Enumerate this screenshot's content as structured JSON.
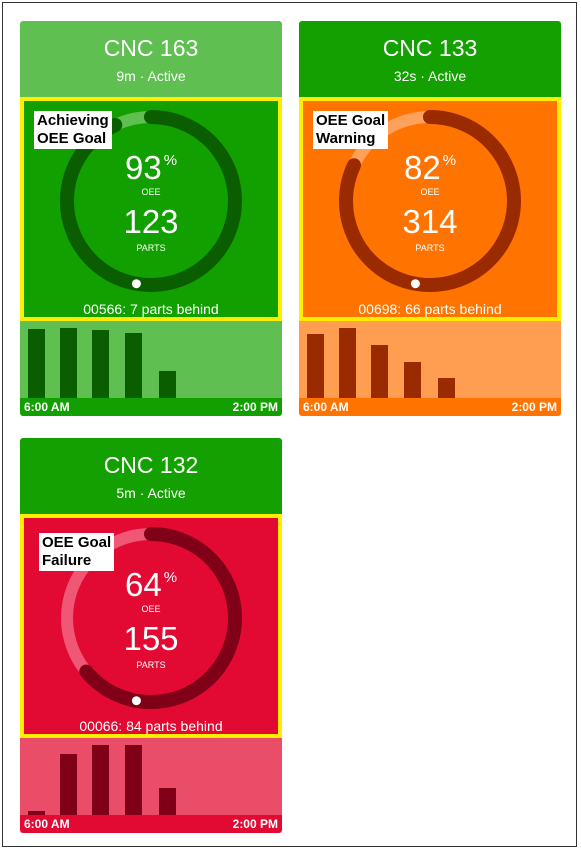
{
  "cards": [
    {
      "title": "CNC 163",
      "subtitle": "9m · Active",
      "status_label": "Achieving\nOEE Goal",
      "oee": 93,
      "oee_symbol": "%",
      "oee_label": "OEE",
      "parts": "123",
      "parts_label": "PARTS",
      "behind_text": "00566: 7 parts behind",
      "start_time": "6:00 AM",
      "end_time": "2:00 PM",
      "bar_values": [
        0.99,
        1.0,
        0.97,
        0.93,
        0.38
      ],
      "colors": {
        "header": "#5fbf50",
        "gauge": "#12a000",
        "ring": "#5fbf50",
        "arc": "#0b5e00",
        "chart": "#5fbf50",
        "bar": "#0b5e00",
        "strip": "#12a000"
      }
    },
    {
      "title": "CNC 133",
      "subtitle": "32s · Active",
      "status_label": "OEE Goal\nWarning",
      "oee": 82,
      "oee_symbol": "%",
      "oee_label": "OEE",
      "parts": "314",
      "parts_label": "PARTS",
      "behind_text": "00698: 66 parts behind",
      "start_time": "6:00 AM",
      "end_time": "2:00 PM",
      "bar_values": [
        0.92,
        1.0,
        0.76,
        0.51,
        0.28
      ],
      "colors": {
        "header": "#13a000",
        "gauge": "#ff7300",
        "ring": "#ffa15a",
        "arc": "#9a2a00",
        "chart": "#ff9d50",
        "bar": "#9a2a00",
        "strip": "#ff7300"
      }
    },
    {
      "title": "CNC 132",
      "subtitle": "5m · Active",
      "status_label": "OEE Goal\nFailure",
      "oee": 64,
      "oee_symbol": "%",
      "oee_label": "OEE",
      "parts": "155",
      "parts_label": "PARTS",
      "behind_text": "00066: 84 parts behind",
      "start_time": "6:00 AM",
      "end_time": "2:00 PM",
      "bar_values": [
        0.05,
        0.87,
        1.0,
        1.0,
        0.38
      ],
      "colors": {
        "header": "#13a000",
        "gauge": "#e20a32",
        "ring": "#ef5774",
        "arc": "#800018",
        "chart": "#ea4d68",
        "bar": "#800018",
        "strip": "#e20a32"
      }
    }
  ]
}
